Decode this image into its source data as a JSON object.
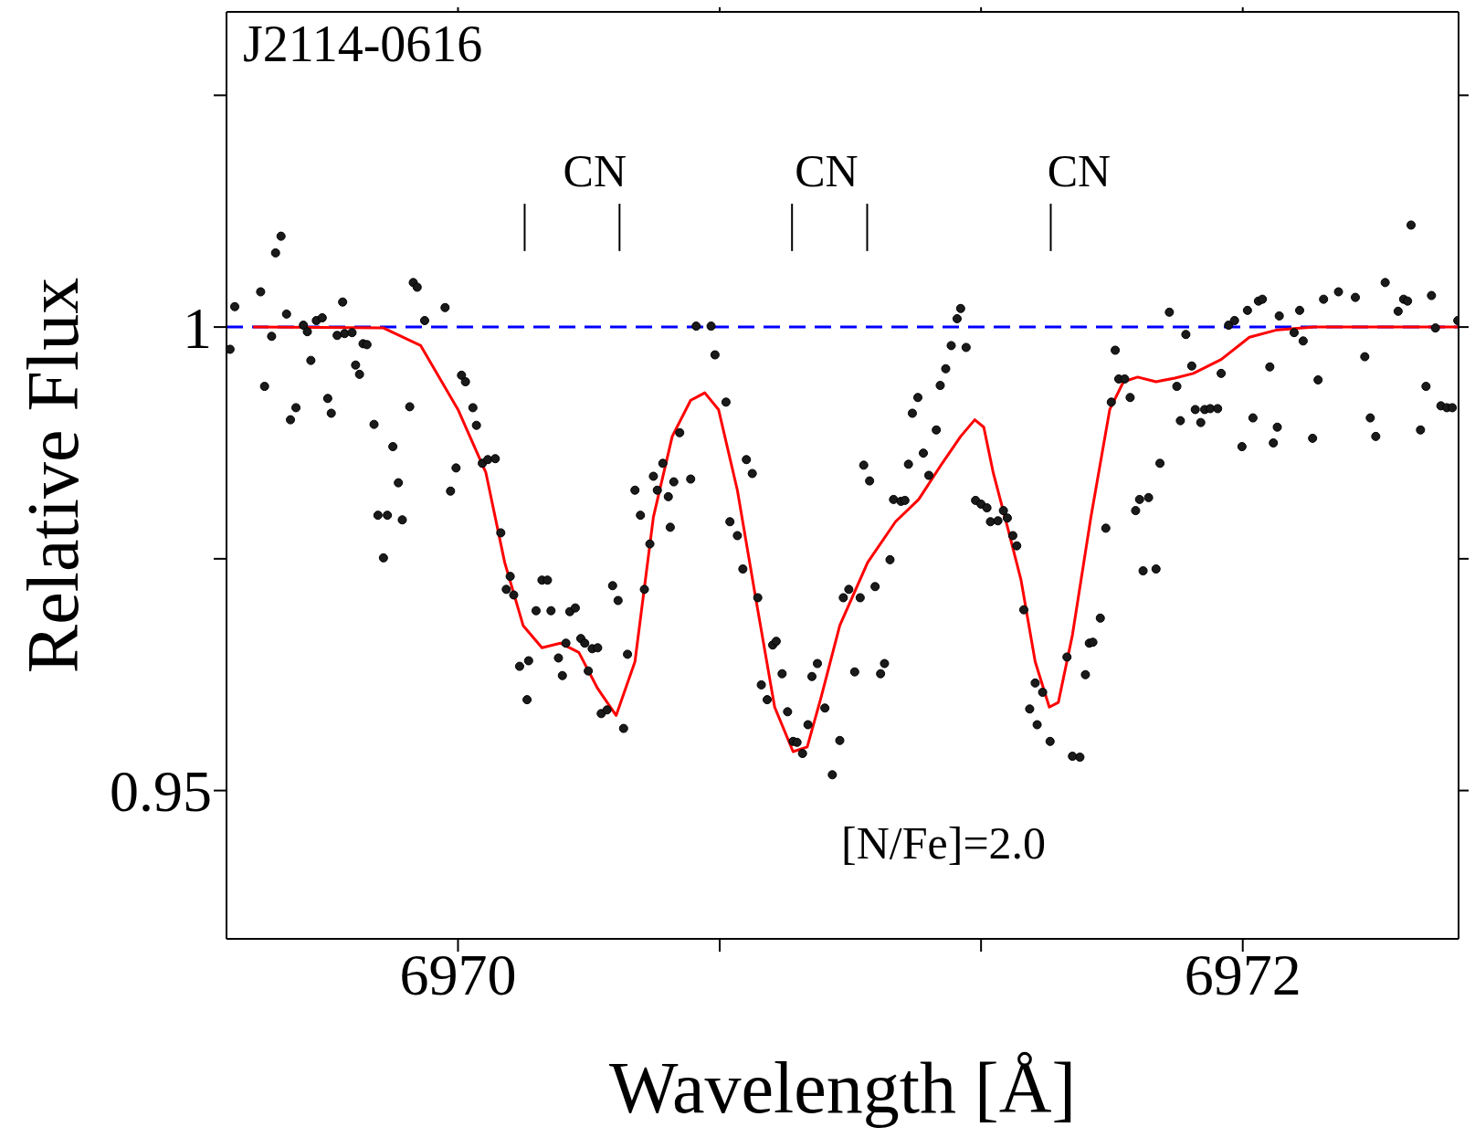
{
  "chart_data": {
    "type": "scatter",
    "title": "J2114-0616",
    "xlabel": "Wavelength [Å]",
    "ylabel": "Relative Flux",
    "xlim": [
      6969.41,
      6972.55
    ],
    "ylim": [
      0.934,
      1.034
    ],
    "xticks": [
      6970,
      {
        "value": 6970.667,
        "label": null
      },
      {
        "value": 6971.333,
        "label": null
      },
      6972
    ],
    "yticks": [
      0.95,
      {
        "value": 0.975,
        "label": null
      },
      1,
      {
        "value": 1.025,
        "label": null
      }
    ],
    "series": [
      {
        "marker": "circle",
        "color": "#1a1a1a",
        "x": [
          6969.419,
          6969.431,
          6969.497,
          6969.507,
          6969.525,
          6969.535,
          6969.549,
          6969.563,
          6969.573,
          6969.587,
          6969.606,
          6969.616,
          6969.625,
          6969.639,
          6969.654,
          6969.668,
          6969.677,
          6969.692,
          6969.706,
          6969.711,
          6969.73,
          6969.739,
          6969.749,
          6969.758,
          6969.768,
          6969.786,
          6969.796,
          6969.81,
          6969.82,
          6969.834,
          6969.848,
          6969.858,
          6969.877,
          6969.886,
          6969.896,
          6969.915,
          6969.967,
          6969.981,
          6969.995,
          6970.009,
          6970.019,
          6970.038,
          6970.047,
          6970.062,
          6970.076,
          6970.095,
          6970.109,
          6970.123,
          6970.133,
          6970.142,
          6970.157,
          6970.176,
          6970.18,
          6970.199,
          6970.214,
          6970.228,
          6970.237,
          6970.256,
          6970.266,
          6970.275,
          6970.285,
          6970.299,
          6970.313,
          6970.323,
          6970.332,
          6970.342,
          6970.356,
          6970.365,
          6970.38,
          6970.394,
          6970.408,
          6970.422,
          6970.432,
          6970.451,
          6970.465,
          6970.475,
          6970.489,
          6970.498,
          6970.508,
          6970.522,
          6970.536,
          6970.541,
          6970.55,
          6970.565,
          6970.593,
          6970.607,
          6970.645,
          6970.655,
          6970.683,
          6970.693,
          6970.712,
          6970.726,
          6970.735,
          6970.75,
          6970.764,
          6970.773,
          6970.788,
          6970.802,
          6970.811,
          6970.826,
          6970.84,
          6970.854,
          6970.864,
          6970.878,
          6970.892,
          6970.902,
          6970.916,
          6970.935,
          6970.954,
          6970.973,
          6970.982,
          6970.996,
          6971.011,
          6971.025,
          6971.034,
          6971.049,
          6971.063,
          6971.077,
          6971.087,
          6971.101,
          6971.11,
          6971.129,
          6971.139,
          6971.148,
          6971.158,
          6971.172,
          6971.186,
          6971.2,
          6971.219,
          6971.229,
          6971.243,
          6971.257,
          6971.272,
          6971.281,
          6971.295,
          6971.319,
          6971.333,
          6971.348,
          6971.357,
          6971.376,
          6971.39,
          6971.4,
          6971.414,
          6971.424,
          6971.442,
          6971.457,
          6971.471,
          6971.476,
          6971.49,
          6971.509,
          6971.552,
          6971.566,
          6971.585,
          6971.599,
          6971.609,
          6971.618,
          6971.637,
          6971.651,
          6971.665,
          6971.675,
          6971.684,
          6971.699,
          6971.713,
          6971.727,
          6971.737,
          6971.746,
          6971.76,
          6971.779,
          6971.789,
          6971.813,
          6971.832,
          6971.841,
          6971.855,
          6971.87,
          6971.879,
          6971.893,
          6971.903,
          6971.917,
          6971.936,
          6971.945,
          6971.964,
          6971.979,
          6971.998,
          6972.012,
          6972.026,
          6972.04,
          6972.05,
          6972.069,
          6972.078,
          6972.088,
          6972.093,
          6972.131,
          6972.145,
          6972.154,
          6972.178,
          6972.192,
          6972.206,
          6972.244,
          6972.287,
          6972.311,
          6972.325,
          6972.339,
          6972.363,
          6972.396,
          6972.41,
          6972.42,
          6972.429,
          6972.453,
          6972.467,
          6972.481,
          6972.491,
          6972.505,
          6972.52,
          6972.534,
          6972.548
        ],
        "values": [
          0.9976,
          1.0022,
          1.0038,
          0.9936,
          0.999,
          1.008,
          1.0098,
          1.0014,
          0.99,
          0.9913,
          1.0002,
          0.9995,
          0.9964,
          1.0007,
          1.001,
          0.9923,
          0.9907,
          0.9991,
          1.0027,
          0.9993,
          0.9994,
          0.9959,
          0.9949,
          0.9982,
          0.9981,
          0.9895,
          0.9797,
          0.9751,
          0.9797,
          0.9871,
          0.9832,
          0.9792,
          0.9914,
          1.0048,
          1.0043,
          1.0007,
          1.0021,
          0.9823,
          0.9848,
          0.9948,
          0.9941,
          0.9913,
          0.9894,
          0.9853,
          0.9857,
          0.9858,
          0.9778,
          0.9717,
          0.9731,
          0.9711,
          0.9634,
          0.9598,
          0.964,
          0.9694,
          0.9727,
          0.9727,
          0.9694,
          0.9643,
          0.9624,
          0.9659,
          0.9693,
          0.9697,
          0.9664,
          0.9659,
          0.9629,
          0.9653,
          0.9654,
          0.9583,
          0.9587,
          0.9721,
          0.9705,
          0.9567,
          0.9647,
          0.9824,
          0.9797,
          0.9717,
          0.9766,
          0.9839,
          0.9824,
          0.9853,
          0.9817,
          0.9784,
          0.9833,
          0.9886,
          0.9836,
          1.0001,
          1.0001,
          0.997,
          0.9919,
          0.979,
          0.9775,
          0.9739,
          0.9857,
          0.9842,
          0.9708,
          0.9614,
          0.9598,
          0.9657,
          0.9661,
          0.9626,
          0.9585,
          0.9553,
          0.9552,
          0.954,
          0.9571,
          0.9623,
          0.9637,
          0.9589,
          0.9517,
          0.9554,
          0.9708,
          0.9717,
          0.9628,
          0.9708,
          0.9851,
          0.9834,
          0.972,
          0.9626,
          0.9637,
          0.9749,
          0.9814,
          0.9812,
          0.9813,
          0.9852,
          0.9907,
          0.9924,
          0.9864,
          0.984,
          0.9889,
          0.9937,
          0.9955,
          0.998,
          1.0009,
          1.002,
          0.9978,
          0.9813,
          0.9809,
          0.9805,
          0.979,
          0.9791,
          0.9802,
          0.9794,
          0.9775,
          0.9764,
          0.9695,
          0.9588,
          0.9616,
          0.9571,
          0.9606,
          0.9553,
          0.9644,
          0.9537,
          0.9536,
          0.9625,
          0.9659,
          0.966,
          0.9686,
          0.9783,
          0.9919,
          0.9975,
          0.9944,
          0.9944,
          0.9924,
          0.9802,
          0.9814,
          0.9737,
          0.9816,
          0.9739,
          0.9853,
          1.0016,
          0.9936,
          0.9899,
          0.9992,
          0.9958,
          0.9911,
          0.9897,
          0.9911,
          0.9912,
          0.9912,
          0.995,
          1.0002,
          1.0007,
          0.9871,
          1.0018,
          0.9902,
          1.0028,
          1.003,
          0.9957,
          0.9875,
          0.9892,
          1.0012,
          0.9994,
          1.0018,
          0.9985,
          0.988,
          0.9943,
          1.003,
          1.0038,
          1.0032,
          0.9968,
          0.9902,
          0.9882,
          1.0048,
          1.0017,
          1.003,
          1.0028,
          1.011,
          0.9889,
          0.9936,
          1.0034,
          0.9999,
          0.9915,
          0.9913,
          0.9913,
          1.0007
        ]
      },
      {
        "type": "line",
        "color": "#ff0000",
        "x": [
          6969.478,
          6969.81,
          6969.905,
          6970.0,
          6970.071,
          6970.119,
          6970.166,
          6970.214,
          6970.261,
          6970.308,
          6970.356,
          6970.403,
          6970.451,
          6970.498,
          6970.546,
          6970.593,
          6970.629,
          6970.664,
          6970.712,
          6970.759,
          6970.807,
          6970.854,
          6970.89,
          6970.925,
          6970.973,
          6971.044,
          6971.115,
          6971.174,
          6971.234,
          6971.281,
          6971.317,
          6971.34,
          6971.364,
          6971.4,
          6971.435,
          6971.471,
          6971.507,
          6971.53,
          6971.566,
          6971.613,
          6971.661,
          6971.696,
          6971.732,
          6971.779,
          6971.827,
          6971.874,
          6971.945,
          6972.017,
          6972.088,
          6972.183,
          6972.55
        ],
        "values": [
          1.0,
          0.9999,
          0.998,
          0.9911,
          0.9843,
          0.9746,
          0.9678,
          0.9654,
          0.9659,
          0.9649,
          0.961,
          0.9581,
          0.9639,
          0.9795,
          0.9882,
          0.9921,
          0.9929,
          0.9911,
          0.9824,
          0.9707,
          0.959,
          0.9542,
          0.9547,
          0.96,
          0.9678,
          0.9746,
          0.979,
          0.9814,
          0.9853,
          0.9882,
          0.99,
          0.9892,
          0.9843,
          0.9785,
          0.9727,
          0.9639,
          0.959,
          0.9595,
          0.9668,
          0.9795,
          0.9911,
          0.9941,
          0.9946,
          0.9941,
          0.9945,
          0.995,
          0.9965,
          0.9989,
          0.9997,
          1.0,
          1.0
        ]
      }
    ],
    "ref_lines": [
      {
        "axis": "y",
        "value": 1,
        "label": null,
        "color": "#0000ff",
        "line_style": "dashed"
      }
    ],
    "annotations": [
      "CN",
      "CN",
      "CN",
      "[N/Fe]=2.0"
    ]
  }
}
